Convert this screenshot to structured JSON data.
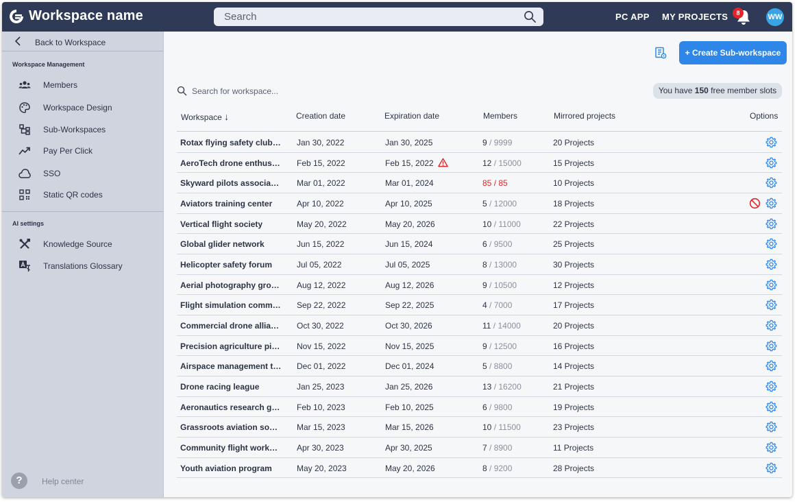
{
  "header": {
    "workspace_name": "Workspace name",
    "search_placeholder": "Search",
    "nav": {
      "pc_app": "PC APP",
      "my_projects": "MY PROJECTS"
    },
    "notification_count": "8",
    "avatar_initials": "WW"
  },
  "sidebar": {
    "back_label": "Back to Workspace",
    "sections": [
      {
        "title": "Workspace Management",
        "items": [
          {
            "label": "Members",
            "icon": "members-icon"
          },
          {
            "label": "Workspace Design",
            "icon": "palette-icon"
          },
          {
            "label": "Sub-Workspaces",
            "icon": "sub-workspaces-icon"
          },
          {
            "label": "Pay Per Click",
            "icon": "trending-up-icon"
          },
          {
            "label": "SSO",
            "icon": "cloud-icon"
          },
          {
            "label": "Static QR codes",
            "icon": "qr-code-icon"
          }
        ]
      },
      {
        "title": "AI settings",
        "items": [
          {
            "label": "Knowledge Source",
            "icon": "tools-icon"
          },
          {
            "label": "Translations Glossary",
            "icon": "translate-icon"
          }
        ]
      }
    ],
    "help_label": "Help center"
  },
  "main": {
    "create_button": "+ Create Sub-workspace",
    "search_placeholder": "Search for workspace...",
    "slots": {
      "prefix": "You have ",
      "count": "150",
      "suffix": " free member slots"
    },
    "columns": {
      "workspace": "Workspace",
      "sort_arrow": "↓",
      "creation": "Creation date",
      "expiration": "Expiration date",
      "members": "Members",
      "mirrored": "Mirrored projects",
      "options": "Options"
    },
    "rows": [
      {
        "name": "Rotax flying safety club…",
        "created": "Jan 30, 2022",
        "expires": "Jan 30, 2025",
        "members": "9",
        "members_total": "9999",
        "projects": "20 Projects"
      },
      {
        "name": "AeroTech drone enthusi…",
        "created": "Feb 15, 2022",
        "expires": "Feb 15, 2022",
        "members": "12",
        "members_total": "15000",
        "projects": "15 Projects",
        "warning": true
      },
      {
        "name": "Skyward pilots associati…",
        "created": "Mar 01, 2022",
        "expires": "Mar 01, 2024",
        "members": "85",
        "members_total": "85",
        "projects": "10 Projects",
        "full": true
      },
      {
        "name": "Aviators training center",
        "created": "Apr 10, 2022",
        "expires": "Apr 10, 2025",
        "members": "5",
        "members_total": "12000",
        "projects": "18 Projects",
        "blocked": true
      },
      {
        "name": "Vertical flight society",
        "created": "May 20, 2022",
        "expires": "May 20, 2026",
        "members": "10",
        "members_total": "11000",
        "projects": "22 Projects"
      },
      {
        "name": "Global glider network",
        "created": "Jun 15, 2022",
        "expires": "Jun 15, 2024",
        "members": "6",
        "members_total": "9500",
        "projects": "25 Projects"
      },
      {
        "name": "Helicopter safety forum",
        "created": "Jul 05, 2022",
        "expires": "Jul 05, 2025",
        "members": "8",
        "members_total": "13000",
        "projects": "30 Projects"
      },
      {
        "name": "Aerial photography gro…",
        "created": "Aug 12, 2022",
        "expires": "Aug 12, 2026",
        "members": "9",
        "members_total": "10500",
        "projects": "12 Projects"
      },
      {
        "name": "Flight simulation comm…",
        "created": "Sep 22, 2022",
        "expires": "Sep 22, 2025",
        "members": "4",
        "members_total": "7000",
        "projects": "17 Projects"
      },
      {
        "name": "Commercial drone allia…",
        "created": "Oct 30, 2022",
        "expires": "Oct 30, 2026",
        "members": "11",
        "members_total": "14000",
        "projects": "20 Projects"
      },
      {
        "name": "Precision agriculture pil…",
        "created": "Nov 15, 2022",
        "expires": "Nov 15, 2025",
        "members": "9",
        "members_total": "12500",
        "projects": "16 Projects"
      },
      {
        "name": "Airspace management t…",
        "created": "Dec 01, 2022",
        "expires": "Dec 01, 2024",
        "members": "5",
        "members_total": "8800",
        "projects": "14 Projects"
      },
      {
        "name": "Drone racing league",
        "created": "Jan 25, 2023",
        "expires": "Jan 25, 2026",
        "members": "13",
        "members_total": "16200",
        "projects": "21 Projects"
      },
      {
        "name": "Aeronautics research gr…",
        "created": "Feb 10, 2023",
        "expires": "Feb 10, 2025",
        "members": "6",
        "members_total": "9800",
        "projects": "19 Projects"
      },
      {
        "name": "Grassroots aviation soci…",
        "created": "Mar 15, 2023",
        "expires": "Mar 15, 2026",
        "members": "10",
        "members_total": "11500",
        "projects": "23 Projects"
      },
      {
        "name": "Community flight work…",
        "created": "Apr 30, 2023",
        "expires": "Apr 30, 2025",
        "members": "7",
        "members_total": "8900",
        "projects": "11 Projects"
      },
      {
        "name": "Youth aviation program",
        "created": "May 20, 2023",
        "expires": "May 20, 2026",
        "members": "8",
        "members_total": "9200",
        "projects": "28 Projects"
      }
    ]
  },
  "colors": {
    "header_bg": "#2e3a56",
    "sidebar_bg": "#cfd4de",
    "accent": "#2e86e8",
    "danger": "#e3242b"
  }
}
